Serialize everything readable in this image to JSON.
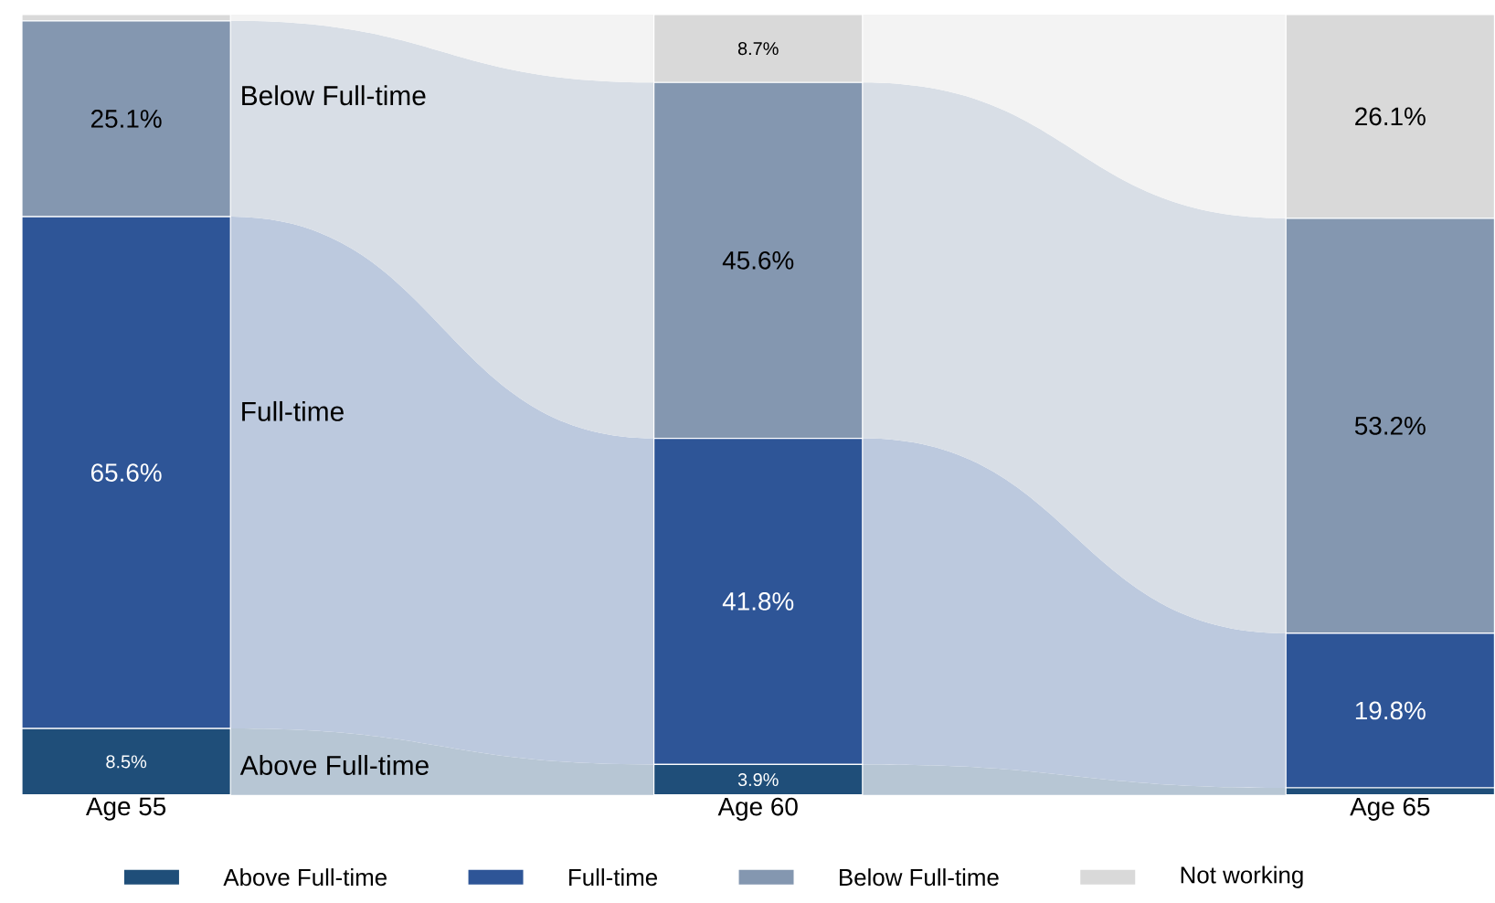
{
  "chart_data": {
    "type": "bar",
    "stacked": true,
    "categories": [
      "Age 55",
      "Age 60",
      "Age 65"
    ],
    "series": [
      {
        "name": "Above Full-time",
        "color": "#1f4e79",
        "values": [
          8.5,
          3.9,
          0.9
        ],
        "value_labels": [
          "8.5%",
          "3.9%",
          null
        ]
      },
      {
        "name": "Full-time",
        "color": "#2e5597",
        "values": [
          65.6,
          41.8,
          19.8
        ],
        "value_labels": [
          "65.6%",
          "41.8%",
          "19.8%"
        ]
      },
      {
        "name": "Below Full-time",
        "color": "#8497b0",
        "values": [
          25.1,
          45.6,
          53.2
        ],
        "value_labels": [
          "25.1%",
          "45.6%",
          "53.2%"
        ]
      },
      {
        "name": "Not working",
        "color": "#d9d9d9",
        "values": [
          0.8,
          8.7,
          26.1
        ],
        "value_labels": [
          null,
          "8.7%",
          "26.1%"
        ]
      }
    ],
    "ylim": [
      0,
      100
    ],
    "tick_labels": "x",
    "legend": "bottom"
  }
}
